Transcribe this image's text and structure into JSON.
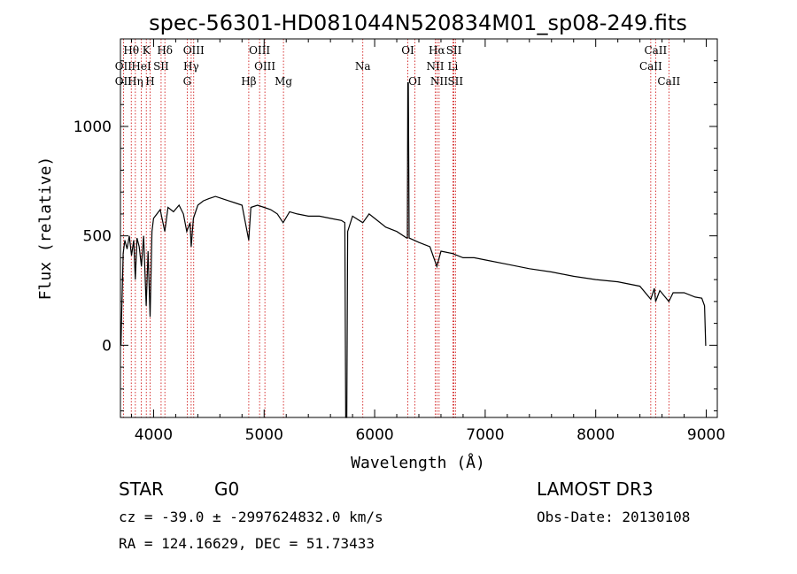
{
  "chart_data": {
    "type": "line",
    "title": "spec-56301-HD081044N520834M01_sp08-249.fits",
    "xlabel": "Wavelength (Å)",
    "ylabel": "Flux (relative)",
    "xlim": [
      3700,
      9100
    ],
    "ylim": [
      -330,
      1400
    ],
    "xticks": [
      4000,
      5000,
      6000,
      7000,
      8000,
      9000
    ],
    "yticks": [
      0,
      500,
      1000
    ],
    "xtick_labels": [
      "4000",
      "5000",
      "6000",
      "7000",
      "8000",
      "9000"
    ],
    "ytick_labels": [
      "0",
      "500",
      "1000"
    ],
    "line_color": "#000000",
    "marker_color": "#cc0000",
    "continuum": [
      {
        "x": 3705,
        "y": 0
      },
      {
        "x": 3712,
        "y": 160
      },
      {
        "x": 3725,
        "y": 420
      },
      {
        "x": 3740,
        "y": 480
      },
      {
        "x": 3760,
        "y": 440
      },
      {
        "x": 3780,
        "y": 500
      },
      {
        "x": 3800,
        "y": 410
      },
      {
        "x": 3820,
        "y": 480
      },
      {
        "x": 3835,
        "y": 300
      },
      {
        "x": 3850,
        "y": 490
      },
      {
        "x": 3870,
        "y": 450
      },
      {
        "x": 3890,
        "y": 360
      },
      {
        "x": 3910,
        "y": 500
      },
      {
        "x": 3933,
        "y": 180
      },
      {
        "x": 3950,
        "y": 430
      },
      {
        "x": 3968,
        "y": 130
      },
      {
        "x": 3985,
        "y": 520
      },
      {
        "x": 4000,
        "y": 580
      },
      {
        "x": 4030,
        "y": 600
      },
      {
        "x": 4060,
        "y": 620
      },
      {
        "x": 4101,
        "y": 520
      },
      {
        "x": 4130,
        "y": 630
      },
      {
        "x": 4180,
        "y": 610
      },
      {
        "x": 4230,
        "y": 640
      },
      {
        "x": 4270,
        "y": 600
      },
      {
        "x": 4300,
        "y": 520
      },
      {
        "x": 4330,
        "y": 560
      },
      {
        "x": 4340,
        "y": 450
      },
      {
        "x": 4360,
        "y": 580
      },
      {
        "x": 4400,
        "y": 640
      },
      {
        "x": 4450,
        "y": 660
      },
      {
        "x": 4500,
        "y": 670
      },
      {
        "x": 4560,
        "y": 680
      },
      {
        "x": 4620,
        "y": 670
      },
      {
        "x": 4680,
        "y": 660
      },
      {
        "x": 4740,
        "y": 650
      },
      {
        "x": 4800,
        "y": 640
      },
      {
        "x": 4861,
        "y": 480
      },
      {
        "x": 4880,
        "y": 630
      },
      {
        "x": 4940,
        "y": 640
      },
      {
        "x": 5000,
        "y": 630
      },
      {
        "x": 5060,
        "y": 620
      },
      {
        "x": 5120,
        "y": 600
      },
      {
        "x": 5172,
        "y": 560
      },
      {
        "x": 5230,
        "y": 610
      },
      {
        "x": 5300,
        "y": 600
      },
      {
        "x": 5400,
        "y": 590
      },
      {
        "x": 5500,
        "y": 590
      },
      {
        "x": 5600,
        "y": 580
      },
      {
        "x": 5700,
        "y": 570
      },
      {
        "x": 5730,
        "y": 560
      },
      {
        "x": 5738,
        "y": -330
      },
      {
        "x": 5748,
        "y": -330
      },
      {
        "x": 5756,
        "y": 520
      },
      {
        "x": 5800,
        "y": 590
      },
      {
        "x": 5893,
        "y": 560
      },
      {
        "x": 5950,
        "y": 600
      },
      {
        "x": 6000,
        "y": 580
      },
      {
        "x": 6100,
        "y": 540
      },
      {
        "x": 6200,
        "y": 520
      },
      {
        "x": 6290,
        "y": 490
      },
      {
        "x": 6296,
        "y": 490
      },
      {
        "x": 6300,
        "y": 1200
      },
      {
        "x": 6305,
        "y": 1200
      },
      {
        "x": 6312,
        "y": 490
      },
      {
        "x": 6400,
        "y": 470
      },
      {
        "x": 6500,
        "y": 450
      },
      {
        "x": 6563,
        "y": 360
      },
      {
        "x": 6600,
        "y": 430
      },
      {
        "x": 6700,
        "y": 420
      },
      {
        "x": 6800,
        "y": 400
      },
      {
        "x": 6900,
        "y": 400
      },
      {
        "x": 7000,
        "y": 390
      },
      {
        "x": 7200,
        "y": 370
      },
      {
        "x": 7400,
        "y": 350
      },
      {
        "x": 7600,
        "y": 335
      },
      {
        "x": 7800,
        "y": 315
      },
      {
        "x": 8000,
        "y": 300
      },
      {
        "x": 8200,
        "y": 290
      },
      {
        "x": 8400,
        "y": 270
      },
      {
        "x": 8498,
        "y": 210
      },
      {
        "x": 8530,
        "y": 260
      },
      {
        "x": 8542,
        "y": 200
      },
      {
        "x": 8580,
        "y": 250
      },
      {
        "x": 8662,
        "y": 200
      },
      {
        "x": 8700,
        "y": 240
      },
      {
        "x": 8800,
        "y": 240
      },
      {
        "x": 8900,
        "y": 220
      },
      {
        "x": 8960,
        "y": 215
      },
      {
        "x": 8985,
        "y": 180
      },
      {
        "x": 8995,
        "y": 0
      },
      {
        "x": 9000,
        "y": 0
      }
    ],
    "lines": [
      {
        "label": "Hθ",
        "wave": 3798,
        "row": 0
      },
      {
        "label": "K",
        "wave": 3934,
        "row": 0
      },
      {
        "label": "Hδ",
        "wave": 4102,
        "row": 0
      },
      {
        "label": "OIII",
        "wave": 4363,
        "row": 0
      },
      {
        "label": "OIII",
        "wave": 4959,
        "row": 0
      },
      {
        "label": "OI",
        "wave": 6300,
        "row": 0
      },
      {
        "label": "Hα",
        "wave": 6563,
        "row": 0
      },
      {
        "label": "SII",
        "wave": 6717,
        "row": 0
      },
      {
        "label": "CaII",
        "wave": 8542,
        "row": 0
      },
      {
        "label": "OII",
        "wave": 3727,
        "row": 1
      },
      {
        "label": "HeI",
        "wave": 3889,
        "row": 1
      },
      {
        "label": "SII",
        "wave": 4068,
        "row": 1
      },
      {
        "label": "Hγ",
        "wave": 4340,
        "row": 1
      },
      {
        "label": "OIII",
        "wave": 5007,
        "row": 1
      },
      {
        "label": "Na",
        "wave": 5893,
        "row": 1
      },
      {
        "label": "NII",
        "wave": 6548,
        "row": 1
      },
      {
        "label": "Li",
        "wave": 6708,
        "row": 1
      },
      {
        "label": "CaII",
        "wave": 8498,
        "row": 1
      },
      {
        "label": "OII",
        "wave": 3727,
        "row": 2
      },
      {
        "label": "Hη",
        "wave": 3835,
        "row": 2
      },
      {
        "label": "H",
        "wave": 3968,
        "row": 2
      },
      {
        "label": "G",
        "wave": 4304,
        "row": 2
      },
      {
        "label": "Hβ",
        "wave": 4861,
        "row": 2
      },
      {
        "label": "Mg",
        "wave": 5175,
        "row": 2
      },
      {
        "label": "OI",
        "wave": 6363,
        "row": 2
      },
      {
        "label": "NII",
        "wave": 6583,
        "row": 2
      },
      {
        "label": "SII",
        "wave": 6731,
        "row": 2
      },
      {
        "label": "CaII",
        "wave": 8662,
        "row": 2
      }
    ]
  },
  "info": {
    "object_class": "STAR",
    "subclass": "G0",
    "survey": "LAMOST DR3",
    "redshift_line": "cz = -39.0 ± -2997624832.0 km/s",
    "obs_date": "Obs-Date: 20130108",
    "coords": "RA = 124.16629, DEC =  51.73433"
  }
}
